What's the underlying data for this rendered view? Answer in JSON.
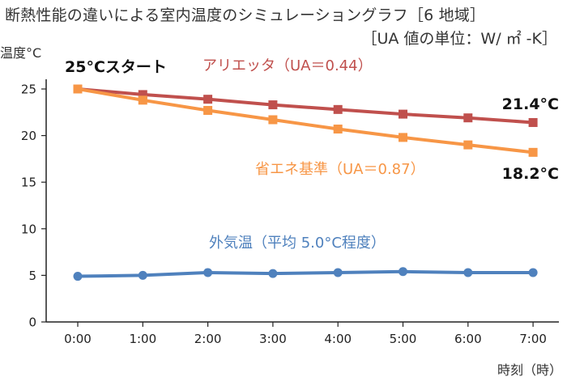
{
  "title": "断熱性能の違いによる室内温度のシミュレーショングラフ［6 地域］",
  "subtitle": "［UA 値の単位：W/ ㎡ -K］",
  "chart_data": {
    "type": "line",
    "x": [
      "0:00",
      "1:00",
      "2:00",
      "3:00",
      "4:00",
      "5:00",
      "6:00",
      "7:00"
    ],
    "xlabel": "時刻（時）",
    "ylabel": "温度°C",
    "ylim": [
      0,
      25
    ],
    "yticks": [
      0,
      5,
      10,
      15,
      20,
      25
    ],
    "grid": false,
    "legend": "inline labels",
    "series": [
      {
        "name": "アリエッタ（UA＝0.44）",
        "color": "#c0504d",
        "marker": "square",
        "values": [
          25.0,
          24.4,
          23.9,
          23.3,
          22.8,
          22.3,
          21.9,
          21.4
        ]
      },
      {
        "name": "省エネ基準（UA＝0.87）",
        "color": "#f79646",
        "marker": "square",
        "values": [
          25.0,
          23.8,
          22.7,
          21.7,
          20.7,
          19.8,
          19.0,
          18.2
        ]
      },
      {
        "name": "外気温（平均 5.0°C程度）",
        "color": "#4f81bd",
        "marker": "circle",
        "values": [
          4.9,
          5.0,
          5.3,
          5.2,
          5.3,
          5.4,
          5.3,
          5.3
        ]
      }
    ],
    "annotations": {
      "start": "25°Cスタート",
      "end_arietta": "21.4°C",
      "end_standard": "18.2°C"
    }
  }
}
